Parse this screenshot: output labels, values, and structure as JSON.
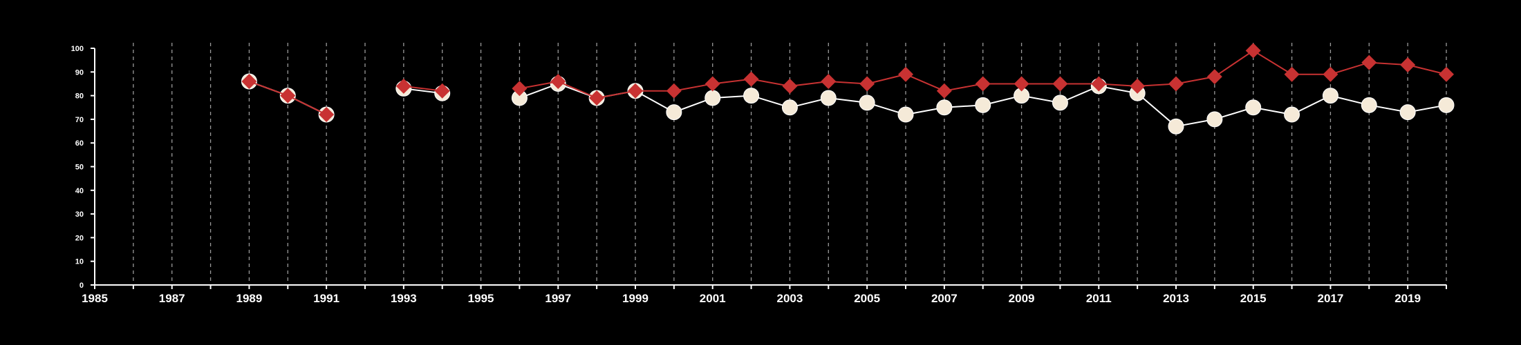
{
  "chart_data": {
    "type": "line",
    "title": "",
    "xlabel": "",
    "ylabel": "",
    "xlim": [
      1985,
      2020
    ],
    "ylim": [
      0,
      100
    ],
    "x_tick_labels": [
      "1985",
      "1987",
      "1989",
      "1991",
      "1993",
      "1995",
      "1997",
      "1999",
      "2001",
      "2003",
      "2005",
      "2007",
      "2009",
      "2011",
      "2013",
      "2015",
      "2017",
      "2019"
    ],
    "y_tick_labels": [
      "0",
      "10",
      "20",
      "30",
      "40",
      "50",
      "60",
      "70",
      "80",
      "90",
      "100"
    ],
    "vertical_gridlines": "dashed, every year",
    "legend": "none",
    "series": [
      {
        "marker": "circle",
        "color": "#f5ead8",
        "line_color": "#ffffff",
        "x": [
          1989,
          1990,
          1991,
          1993,
          1994,
          1996,
          1997,
          1998,
          1999,
          2000,
          2001,
          2002,
          2003,
          2004,
          2005,
          2006,
          2007,
          2008,
          2009,
          2010,
          2011,
          2012,
          2013,
          2014,
          2015,
          2016,
          2017,
          2018,
          2019,
          2020
        ],
        "y": [
          86,
          80,
          72,
          83,
          81,
          79,
          85,
          79,
          82,
          73,
          79,
          80,
          75,
          79,
          77,
          72,
          75,
          76,
          80,
          77,
          84,
          81,
          67,
          70,
          75,
          72,
          80,
          76,
          73,
          76
        ]
      },
      {
        "marker": "diamond",
        "color": "#c83232",
        "line_color": "#c83232",
        "x": [
          1989,
          1990,
          1991,
          1993,
          1994,
          1996,
          1997,
          1998,
          1999,
          2000,
          2001,
          2002,
          2003,
          2004,
          2005,
          2006,
          2007,
          2008,
          2009,
          2010,
          2011,
          2012,
          2013,
          2014,
          2015,
          2016,
          2017,
          2018,
          2019,
          2020
        ],
        "y": [
          86,
          80,
          72,
          84,
          82,
          83,
          86,
          79,
          82,
          82,
          85,
          87,
          84,
          86,
          85,
          89,
          82,
          85,
          85,
          85,
          85,
          84,
          85,
          88,
          99,
          89,
          89,
          94,
          93,
          89
        ]
      }
    ]
  }
}
